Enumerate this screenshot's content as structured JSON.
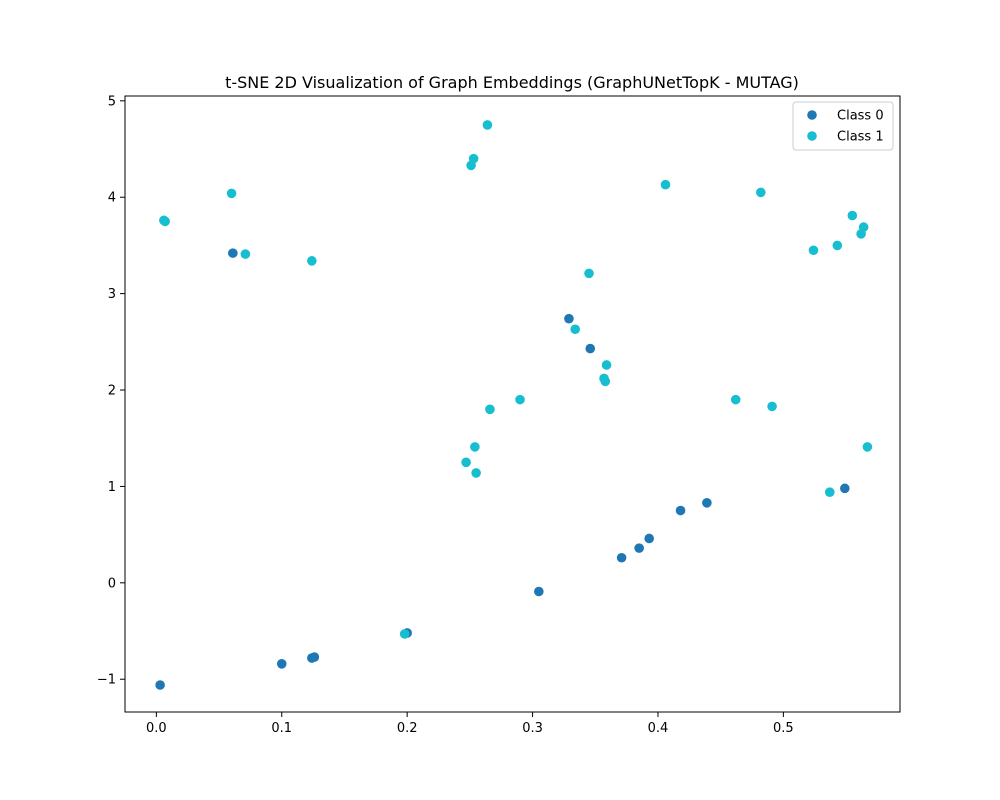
{
  "chart_data": {
    "type": "scatter",
    "title": "t-SNE 2D Visualization of Graph Embeddings (GraphUNetTopK - MUTAG)",
    "xlabel": "",
    "ylabel": "",
    "xlim": [
      -0.025,
      0.593
    ],
    "ylim": [
      -1.34,
      5.05
    ],
    "xticks": [
      0.0,
      0.1,
      0.2,
      0.3,
      0.4,
      0.5
    ],
    "xtick_labels": [
      "0.0",
      "0.1",
      "0.2",
      "0.3",
      "0.4",
      "0.5"
    ],
    "yticks": [
      -1,
      0,
      1,
      2,
      3,
      4,
      5
    ],
    "ytick_labels": [
      "−1",
      "0",
      "1",
      "2",
      "3",
      "4",
      "5"
    ],
    "grid": false,
    "legend_position": "top-right",
    "series": [
      {
        "name": "Class 0",
        "color": "#1f77b4",
        "points": [
          [
            0.003,
            -1.06
          ],
          [
            0.1,
            -0.84
          ],
          [
            0.124,
            -0.78
          ],
          [
            0.126,
            -0.77
          ],
          [
            0.2,
            -0.52
          ],
          [
            0.061,
            3.42
          ],
          [
            0.305,
            -0.09
          ],
          [
            0.371,
            0.26
          ],
          [
            0.385,
            0.36
          ],
          [
            0.393,
            0.46
          ],
          [
            0.418,
            0.75
          ],
          [
            0.439,
            0.83
          ],
          [
            0.549,
            0.98
          ],
          [
            0.329,
            2.74
          ],
          [
            0.346,
            2.43
          ]
        ]
      },
      {
        "name": "Class 1",
        "color": "#17becf",
        "points": [
          [
            0.006,
            3.76
          ],
          [
            0.007,
            3.75
          ],
          [
            0.06,
            4.04
          ],
          [
            0.071,
            3.41
          ],
          [
            0.124,
            3.34
          ],
          [
            0.198,
            -0.53
          ],
          [
            0.251,
            4.33
          ],
          [
            0.253,
            4.4
          ],
          [
            0.264,
            4.75
          ],
          [
            0.406,
            4.13
          ],
          [
            0.482,
            4.05
          ],
          [
            0.345,
            3.21
          ],
          [
            0.334,
            2.63
          ],
          [
            0.359,
            2.26
          ],
          [
            0.357,
            2.12
          ],
          [
            0.358,
            2.09
          ],
          [
            0.29,
            1.9
          ],
          [
            0.266,
            1.8
          ],
          [
            0.254,
            1.41
          ],
          [
            0.247,
            1.25
          ],
          [
            0.255,
            1.14
          ],
          [
            0.462,
            1.9
          ],
          [
            0.491,
            1.83
          ],
          [
            0.555,
            3.81
          ],
          [
            0.564,
            3.69
          ],
          [
            0.562,
            3.62
          ],
          [
            0.543,
            3.5
          ],
          [
            0.524,
            3.45
          ],
          [
            0.567,
            1.41
          ],
          [
            0.537,
            0.94
          ]
        ]
      }
    ]
  }
}
